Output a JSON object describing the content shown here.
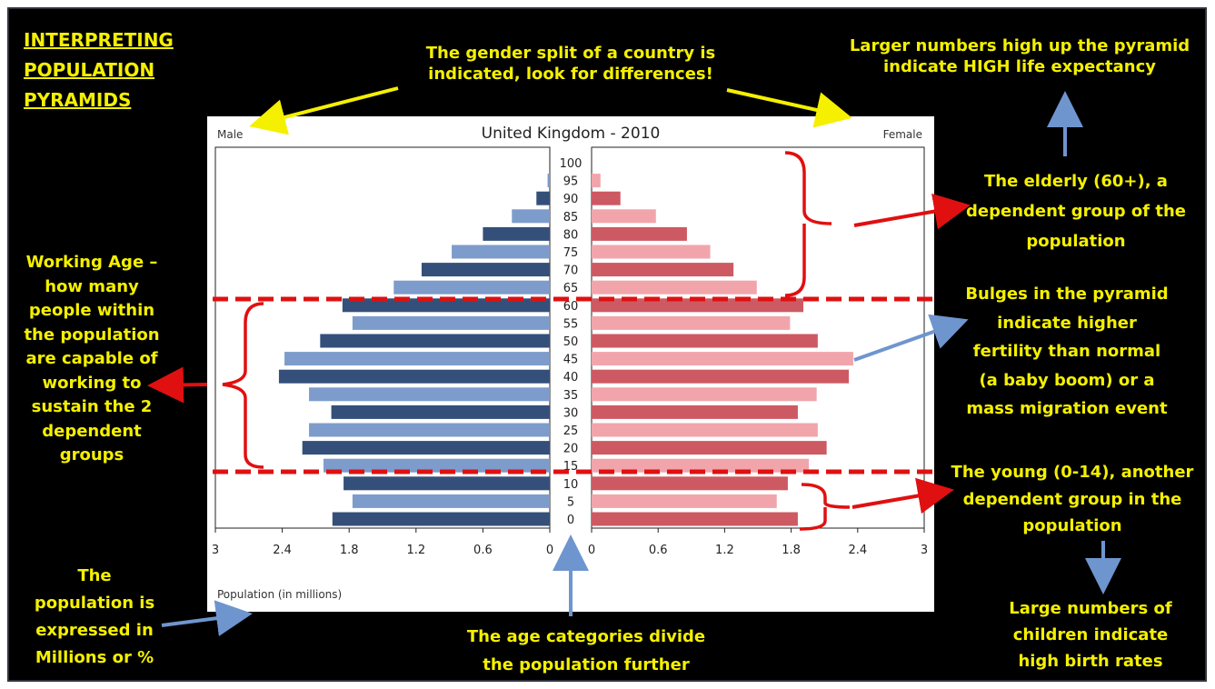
{
  "heading": "INTERPRETING\nPOPULATION\nPYRAMIDS",
  "annotations": {
    "gender_split": "The gender split of a country is\nindicated, look for differences!",
    "life_expectancy": "Larger numbers high up the pyramid\nindicate HIGH life expectancy",
    "elderly": "The elderly (60+), a\ndependent group of the\npopulation",
    "working_age": "Working Age –\nhow many\npeople within\nthe population\nare capable of\nworking to\nsustain the 2\ndependent\ngroups",
    "bulges": "Bulges in the pyramid\nindicate higher\nfertility than normal\n(a baby boom) or a\nmass  migration event",
    "young": "The young (0-14), another\ndependent group in the\npopulation",
    "birth_rates": "Large numbers of\nchildren indicate\nhigh birth rates",
    "population_units": "The\npopulation is\nexpressed in\nMillions or %",
    "age_categories": "The age categories divide\nthe population further"
  },
  "colors": {
    "background": "#000000",
    "annotation_text": "#f4f000",
    "male_dark": "#34507a",
    "male_light": "#7d9ccb",
    "female_dark": "#cd5a62",
    "female_light": "#f1a5ab",
    "red_marker": "#e01010",
    "blue_arrow": "#6f95cf"
  },
  "chart_data": {
    "type": "bar",
    "orientation": "horizontal",
    "title": "United Kingdom - 2010",
    "left_label": "Male",
    "right_label": "Female",
    "xlabel": "Population (in millions)",
    "x_ticks_left": [
      "3",
      "2.4",
      "1.8",
      "1.2",
      "0.6",
      "0"
    ],
    "x_ticks_right": [
      "0",
      "0.6",
      "1.2",
      "1.8",
      "2.4",
      "3"
    ],
    "xlim": [
      0,
      3
    ],
    "categories": [
      "0",
      "5",
      "10",
      "15",
      "20",
      "25",
      "30",
      "35",
      "40",
      "45",
      "50",
      "55",
      "60",
      "65",
      "70",
      "75",
      "80",
      "85",
      "90",
      "95",
      "100"
    ],
    "series": [
      {
        "name": "Male",
        "values": [
          1.95,
          1.77,
          1.85,
          2.03,
          2.22,
          2.16,
          1.96,
          2.16,
          2.43,
          2.38,
          2.06,
          1.77,
          1.86,
          1.4,
          1.15,
          0.88,
          0.6,
          0.34,
          0.12,
          0.02,
          0
        ]
      },
      {
        "name": "Female",
        "values": [
          1.86,
          1.67,
          1.77,
          1.96,
          2.12,
          2.04,
          1.86,
          2.03,
          2.32,
          2.36,
          2.04,
          1.79,
          1.91,
          1.49,
          1.28,
          1.07,
          0.86,
          0.58,
          0.26,
          0.08,
          0
        ]
      }
    ],
    "grid": false
  }
}
